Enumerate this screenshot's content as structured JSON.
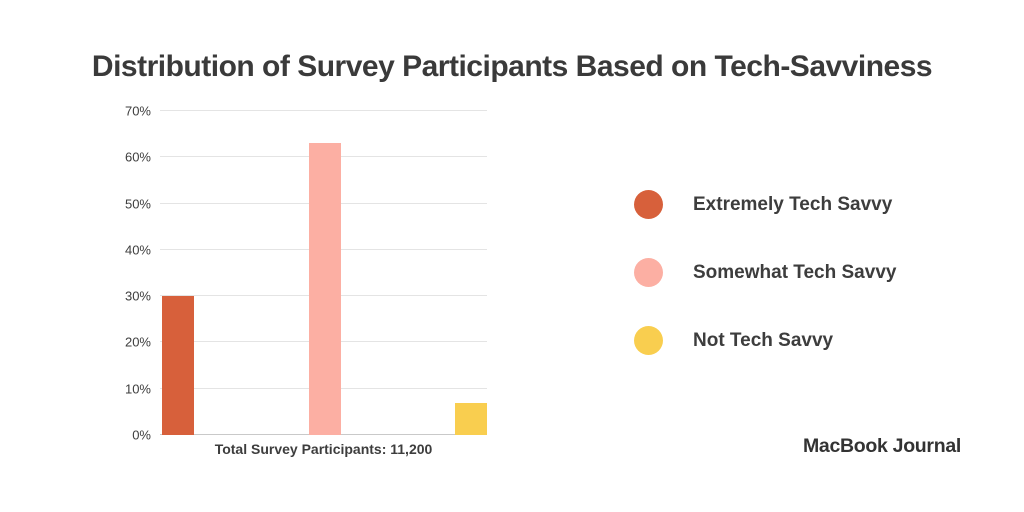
{
  "page": {
    "title": "Distribution of Survey Participants Based on Tech-Savviness",
    "caption": "Total Survey Participants: 11,200",
    "brand": "MacBook Journal"
  },
  "chart_data": {
    "type": "bar",
    "title": "Distribution of Survey Participants Based on Tech-Savviness",
    "categories": [
      "Extremely Tech Savvy",
      "Somewhat Tech Savvy",
      "Not Tech Savvy"
    ],
    "values": [
      30,
      63,
      7
    ],
    "unit": "%",
    "xlabel": "",
    "ylabel": "",
    "ylim": [
      0,
      70
    ],
    "ytick_step": 10,
    "ytick_labels": [
      "0%",
      "10%",
      "20%",
      "30%",
      "40%",
      "50%",
      "60%",
      "70%"
    ],
    "grid": true,
    "legend_position": "right",
    "bar_colors": [
      "#d7603b",
      "#fcafa3",
      "#f9ce4f"
    ],
    "annotation": "Total Survey Participants: 11,200",
    "total_participants": "11,200"
  },
  "legend": {
    "items": [
      {
        "label": "Extremely Tech Savvy",
        "color": "#d7603b"
      },
      {
        "label": "Somewhat Tech Savvy",
        "color": "#fcafa3"
      },
      {
        "label": "Not Tech Savvy",
        "color": "#f9ce4f"
      }
    ]
  },
  "colors": {
    "text_dark": "#3d3d3d",
    "gridline": "#e4e4e4",
    "axis_line": "#c9c9c9"
  }
}
